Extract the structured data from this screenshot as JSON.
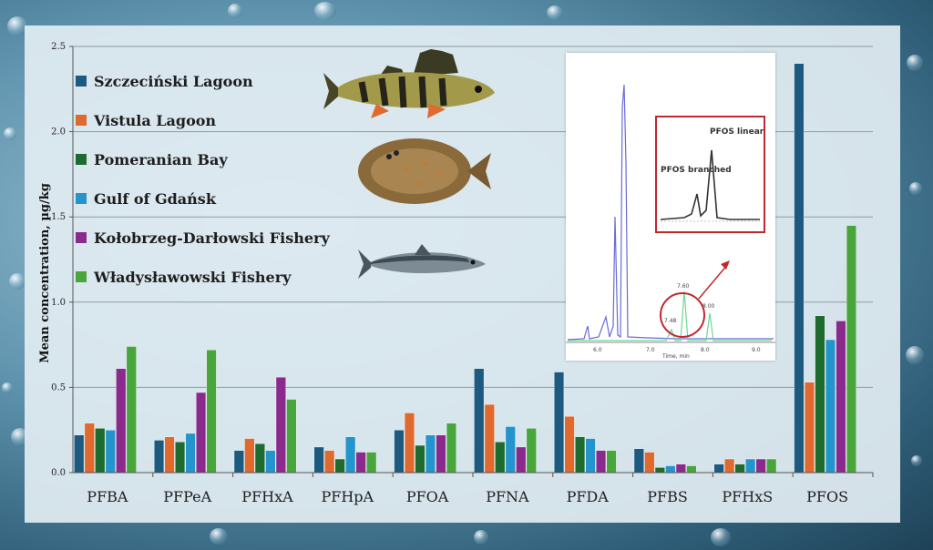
{
  "chart_data": {
    "type": "bar",
    "categories": [
      "PFBA",
      "PFPeA",
      "PFHxA",
      "PFHpA",
      "PFOA",
      "PFNA",
      "PFDA",
      "PFBS",
      "PFHxS",
      "PFOS"
    ],
    "series": [
      {
        "name": "Szczeciński Lagoon",
        "color": "#1d5a80",
        "values": [
          0.22,
          0.19,
          0.13,
          0.15,
          0.25,
          0.61,
          0.59,
          0.14,
          0.05,
          2.4
        ]
      },
      {
        "name": "Vistula Lagoon",
        "color": "#e06a2e",
        "values": [
          0.29,
          0.21,
          0.2,
          0.13,
          0.35,
          0.4,
          0.33,
          0.12,
          0.08,
          0.53
        ]
      },
      {
        "name": "Pomeranian Bay",
        "color": "#1e6b2f",
        "values": [
          0.26,
          0.18,
          0.17,
          0.08,
          0.16,
          0.18,
          0.21,
          0.03,
          0.05,
          0.92
        ]
      },
      {
        "name": "Gulf of Gdańsk",
        "color": "#2494cc",
        "values": [
          0.25,
          0.23,
          0.13,
          0.21,
          0.22,
          0.27,
          0.2,
          0.04,
          0.08,
          0.78
        ]
      },
      {
        "name": "Kołobrzeg-Darłowski Fishery",
        "color": "#8b2a8d",
        "values": [
          0.61,
          0.47,
          0.56,
          0.12,
          0.22,
          0.15,
          0.13,
          0.05,
          0.08,
          0.89
        ]
      },
      {
        "name": "Władysławowski Fishery",
        "color": "#48a63c",
        "values": [
          0.74,
          0.72,
          0.43,
          0.12,
          0.29,
          0.26,
          0.13,
          0.04,
          0.08,
          1.45
        ]
      }
    ],
    "xlabel": "",
    "ylabel": "Mean concentration, µg/kg",
    "ylim": [
      0,
      2.5
    ],
    "yticks": [
      "0.0",
      "0.5",
      "1.0",
      "1.5",
      "2.0",
      "2.5"
    ],
    "grid": true,
    "legend_position": "top-left"
  },
  "inset": {
    "label_linear": "PFOS linear",
    "label_branched": "PFOS branched",
    "xtick_labels": [
      "6.0",
      "7.0",
      "8.0",
      "9.0"
    ],
    "xlabel": "Time, min",
    "peak_labels": [
      "7.60",
      "7.48",
      "8.00"
    ]
  }
}
